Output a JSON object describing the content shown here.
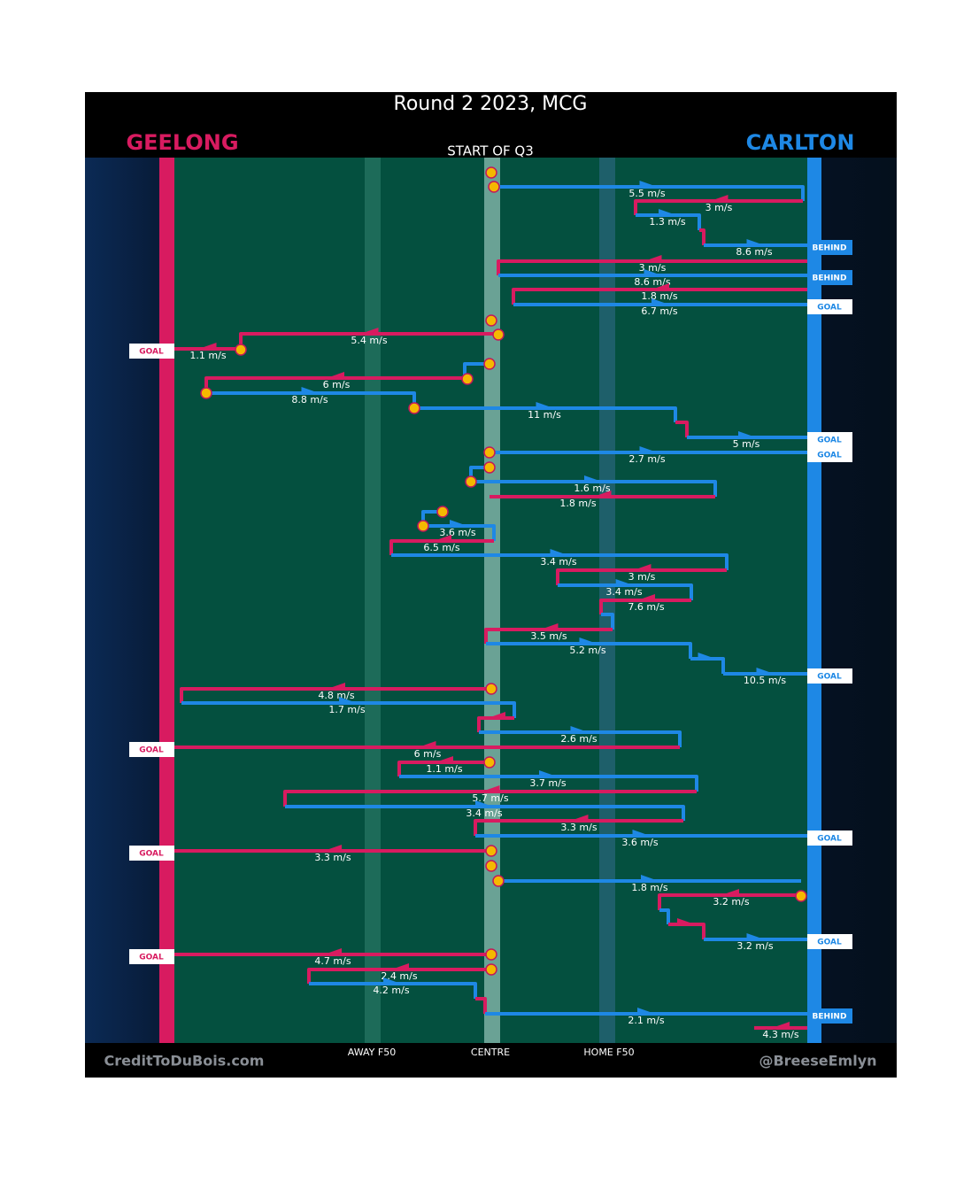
{
  "title": "Round 2 2023, MCG",
  "home_team": "GEELONG",
  "away_team": "CARLTON",
  "period": "START OF Q3",
  "zones": [
    "AWAY F50",
    "CENTRE",
    "HOME F50"
  ],
  "footer": {
    "left": "CreditToDuBois.com",
    "right": "@BreeseEmlyn"
  },
  "speeds": [
    "5.5 m/s",
    "3 m/s",
    "1.3 m/s",
    "8.6 m/s",
    "3 m/s",
    "8.6 m/s",
    "1.8 m/s",
    "6.7 m/s",
    "5.4 m/s",
    "1.1 m/s",
    "6 m/s",
    "8.8 m/s",
    "11 m/s",
    "5 m/s",
    "2.7 m/s",
    "1.6 m/s",
    "1.8 m/s",
    "3.6 m/s",
    "6.5 m/s",
    "3.4 m/s",
    "3 m/s",
    "3.4 m/s",
    "7.6 m/s",
    "3.5 m/s",
    "5.2 m/s",
    "10.5 m/s",
    "4.8 m/s",
    "1.7 m/s",
    "2.6 m/s",
    "6 m/s",
    "1.1 m/s",
    "3.7 m/s",
    "5.7 m/s",
    "3.4 m/s",
    "3.3 m/s",
    "3.6 m/s",
    "3.3 m/s",
    "1.8 m/s",
    "3.2 m/s",
    "3.2 m/s",
    "4.7 m/s",
    "2.4 m/s",
    "4.2 m/s",
    "2.1 m/s",
    "4.3 m/s"
  ],
  "outcomes": [
    "BEHIND",
    "BEHIND",
    "GOAL",
    "GOAL",
    "GOAL",
    "GOAL",
    "GOAL",
    "GOAL",
    "GOAL",
    "GOAL",
    "GOAL",
    "GOAL",
    "BEHIND"
  ]
}
